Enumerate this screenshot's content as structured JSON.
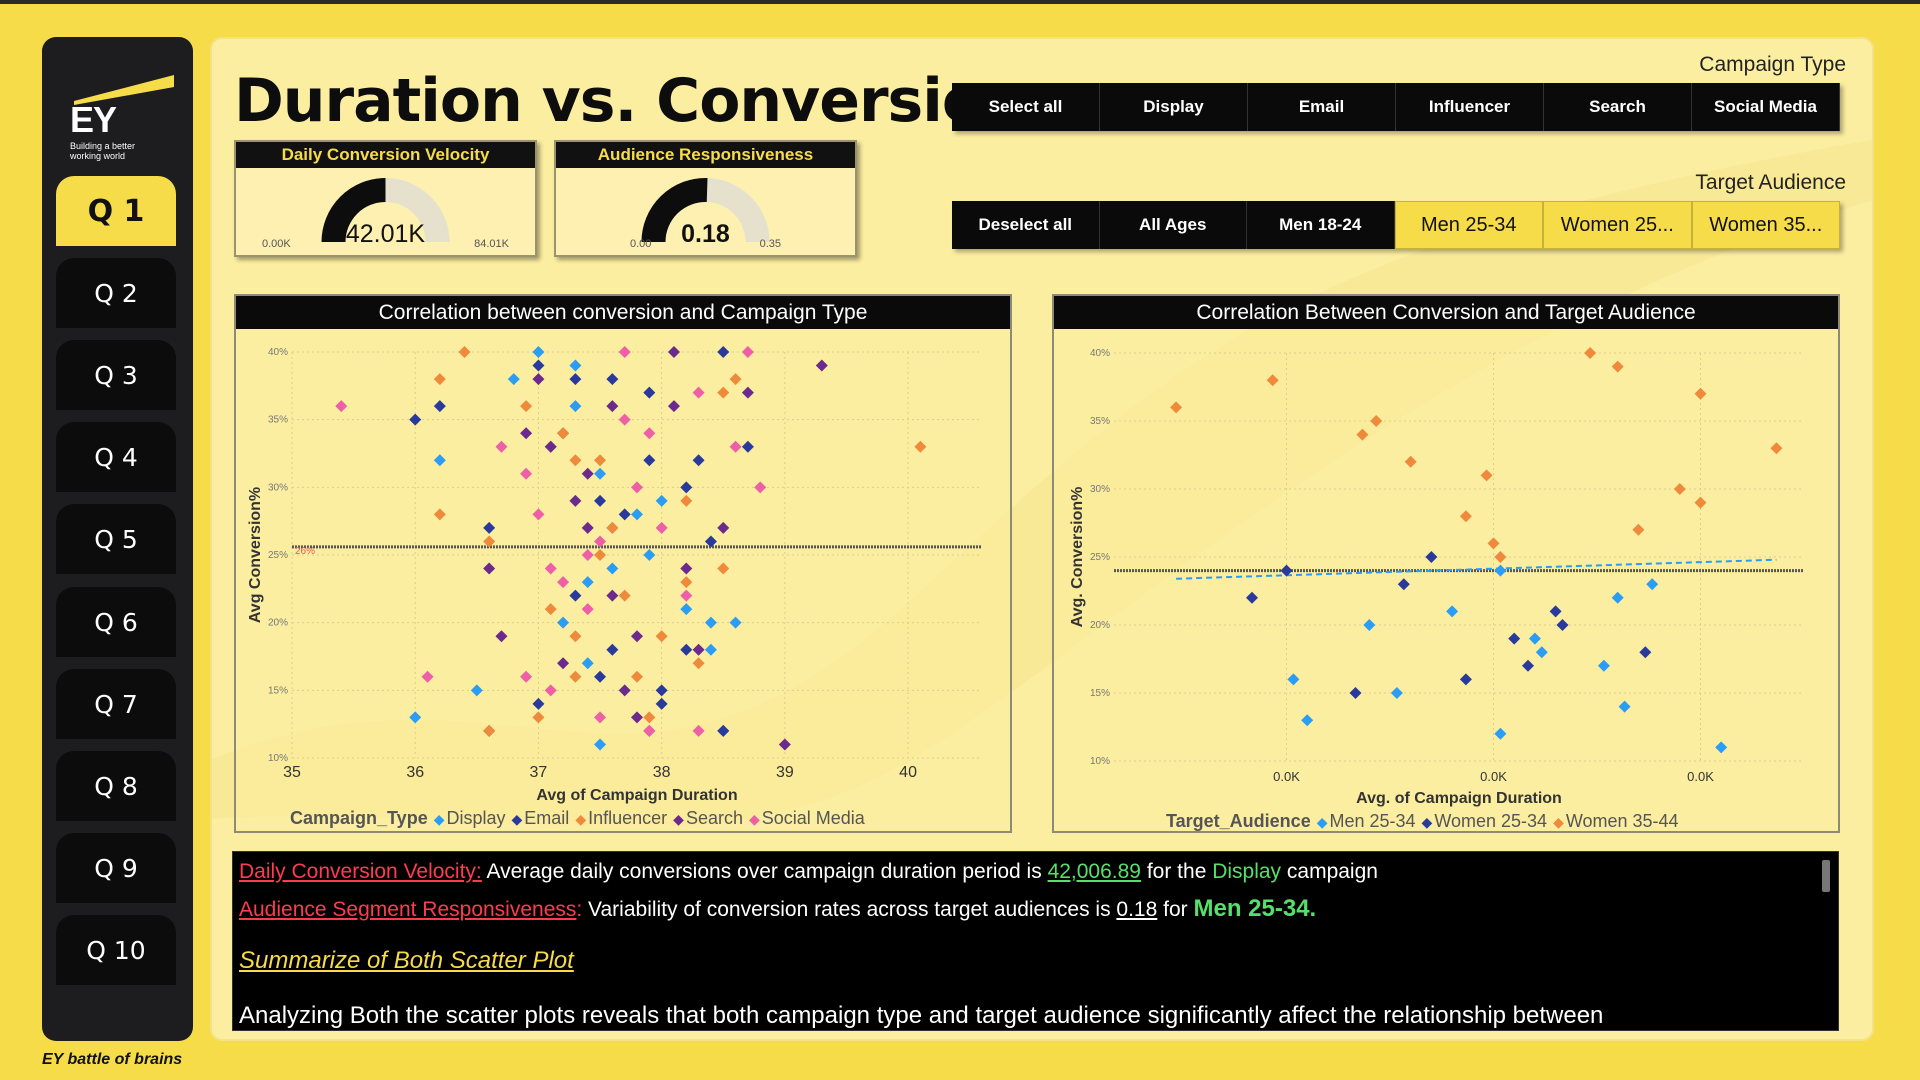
{
  "sidebar": {
    "brand": "EY",
    "tagline": "Building a better working world",
    "items": [
      "Q 1",
      "Q 2",
      "Q 3",
      "Q 4",
      "Q 5",
      "Q 6",
      "Q 7",
      "Q 8",
      "Q 9",
      "Q 10"
    ],
    "active": "Q 1",
    "footer": "EY battle of brains"
  },
  "header": {
    "title": "Duration vs. Conversion"
  },
  "kpis": [
    {
      "title": "Daily Conversion Velocity",
      "value": "42.01K",
      "min": "0.00K",
      "max": "84.01K",
      "fraction": 0.5
    },
    {
      "title": "Audience Responsiveness",
      "value": "0.18",
      "min": "0.00",
      "max": "0.35",
      "fraction": 0.51
    }
  ],
  "campaign_slicer": {
    "label": "Campaign Type",
    "buttons": [
      "Select all",
      "Display",
      "Email",
      "Influencer",
      "Search",
      "Social Media"
    ],
    "selected": []
  },
  "audience_slicer": {
    "label": "Target Audience",
    "buttons": [
      "Deselect all",
      "All Ages",
      "Men 18-24",
      "Men 25-34",
      "Women 25...",
      "Women 35..."
    ],
    "selected": [
      "Men 25-34",
      "Women 25...",
      "Women 35..."
    ]
  },
  "colors": {
    "display": "#2b9df4",
    "email": "#2a3a9c",
    "influencer": "#ef8a3c",
    "search": "#6b2a8c",
    "social": "#ee5fa8",
    "brand_yellow": "#f7dc4a"
  },
  "chart_data": [
    {
      "type": "scatter",
      "title": "Correlation between conversion and Campaign Type",
      "xlabel": "Avg of Campaign Duration",
      "ylabel": "Avg Conversion%",
      "xlim": [
        35,
        40.6
      ],
      "ylim": [
        10,
        40
      ],
      "x_ticks": [
        "35",
        "36",
        "37",
        "38",
        "39",
        "40"
      ],
      "y_ticks": [
        "10%",
        "15%",
        "20%",
        "25%",
        "30%",
        "35%",
        "40%"
      ],
      "reference_line": {
        "y": 25.6,
        "label": "26%"
      },
      "legend_title": "Campaign_Type",
      "legend": [
        "Display",
        "Email",
        "Influencer",
        "Search",
        "Social Media"
      ],
      "grid": true,
      "series": [
        {
          "name": "Display",
          "color": "#2b9df4",
          "points": [
            [
              36.2,
              32
            ],
            [
              36.0,
              13
            ],
            [
              36.5,
              15
            ],
            [
              37.0,
              40
            ],
            [
              37.3,
              39
            ],
            [
              37.5,
              31
            ],
            [
              37.8,
              28
            ],
            [
              38.0,
              29
            ],
            [
              37.4,
              23
            ],
            [
              37.2,
              20
            ],
            [
              37.6,
              24
            ],
            [
              38.2,
              21
            ],
            [
              38.4,
              18
            ],
            [
              37.5,
              11
            ],
            [
              38.5,
              12
            ],
            [
              37.1,
              33
            ],
            [
              37.6,
              27
            ],
            [
              38.4,
              20
            ],
            [
              36.8,
              38
            ],
            [
              37.3,
              36
            ],
            [
              37.4,
              17
            ],
            [
              38.6,
              20
            ],
            [
              37.9,
              25
            ]
          ]
        },
        {
          "name": "Email",
          "color": "#2a3a9c",
          "points": [
            [
              36.0,
              35
            ],
            [
              36.2,
              36
            ],
            [
              36.6,
              12
            ],
            [
              36.6,
              27
            ],
            [
              37.0,
              39
            ],
            [
              37.3,
              38
            ],
            [
              37.6,
              38
            ],
            [
              37.2,
              34
            ],
            [
              37.9,
              37
            ],
            [
              38.3,
              32
            ],
            [
              37.5,
              29
            ],
            [
              37.7,
              28
            ],
            [
              38.2,
              30
            ],
            [
              38.0,
              14
            ],
            [
              38.5,
              12
            ],
            [
              38.0,
              15
            ],
            [
              37.5,
              16
            ],
            [
              38.7,
              33
            ],
            [
              37.0,
              14
            ],
            [
              37.6,
              18
            ],
            [
              37.3,
              22
            ],
            [
              38.4,
              26
            ],
            [
              38.2,
              18
            ],
            [
              38.5,
              40
            ],
            [
              37.9,
              32
            ]
          ]
        },
        {
          "name": "Influencer",
          "color": "#ef8a3c",
          "points": [
            [
              36.2,
              38
            ],
            [
              36.4,
              40
            ],
            [
              36.2,
              28
            ],
            [
              36.6,
              12
            ],
            [
              36.9,
              36
            ],
            [
              37.0,
              13
            ],
            [
              37.2,
              34
            ],
            [
              37.3,
              32
            ],
            [
              37.5,
              32
            ],
            [
              37.1,
              21
            ],
            [
              37.3,
              19
            ],
            [
              37.5,
              25
            ],
            [
              37.6,
              27
            ],
            [
              37.8,
              16
            ],
            [
              37.7,
              22
            ],
            [
              38.0,
              19
            ],
            [
              38.3,
              17
            ],
            [
              38.5,
              37
            ],
            [
              38.5,
              24
            ],
            [
              38.6,
              38
            ],
            [
              38.2,
              23
            ],
            [
              37.9,
              13
            ],
            [
              40.1,
              33
            ],
            [
              36.6,
              26
            ],
            [
              37.3,
              16
            ],
            [
              38.2,
              29
            ]
          ]
        },
        {
          "name": "Search",
          "color": "#6b2a8c",
          "points": [
            [
              36.6,
              24
            ],
            [
              36.7,
              19
            ],
            [
              37.0,
              38
            ],
            [
              37.1,
              33
            ],
            [
              37.3,
              29
            ],
            [
              37.2,
              17
            ],
            [
              37.4,
              31
            ],
            [
              37.6,
              36
            ],
            [
              37.6,
              22
            ],
            [
              37.7,
              15
            ],
            [
              37.8,
              19
            ],
            [
              37.8,
              13
            ],
            [
              37.9,
              12
            ],
            [
              38.2,
              24
            ],
            [
              38.3,
              18
            ],
            [
              38.5,
              27
            ],
            [
              38.7,
              37
            ],
            [
              39.0,
              11
            ],
            [
              39.3,
              39
            ],
            [
              38.1,
              36
            ],
            [
              37.4,
              27
            ],
            [
              36.9,
              34
            ],
            [
              38.1,
              40
            ]
          ]
        },
        {
          "name": "Social Media",
          "color": "#ee5fa8",
          "points": [
            [
              35.4,
              36
            ],
            [
              36.1,
              16
            ],
            [
              36.9,
              16
            ],
            [
              36.9,
              31
            ],
            [
              37.0,
              28
            ],
            [
              37.1,
              24
            ],
            [
              37.2,
              23
            ],
            [
              37.4,
              25
            ],
            [
              37.5,
              26
            ],
            [
              37.7,
              35
            ],
            [
              37.8,
              30
            ],
            [
              37.9,
              34
            ],
            [
              38.0,
              27
            ],
            [
              38.3,
              37
            ],
            [
              38.8,
              30
            ],
            [
              38.3,
              12
            ],
            [
              37.9,
              12
            ],
            [
              38.7,
              40
            ],
            [
              37.7,
              40
            ],
            [
              37.4,
              21
            ],
            [
              36.7,
              33
            ],
            [
              37.1,
              15
            ],
            [
              38.6,
              33
            ],
            [
              38.2,
              22
            ],
            [
              37.5,
              13
            ]
          ]
        }
      ]
    },
    {
      "type": "scatter",
      "title": "Correlation Between Conversion and Target Audience",
      "xlabel": "Avg. of Campaign Duration",
      "ylabel": "Avg. Conversion%",
      "xlim": [
        0,
        1
      ],
      "ylim": [
        10,
        40
      ],
      "x_ticks": [
        "0.0K",
        "0.0K",
        "0.0K"
      ],
      "y_ticks": [
        "10%",
        "15%",
        "20%",
        "25%",
        "30%",
        "35%",
        "40%"
      ],
      "reference_line": {
        "y": 24
      },
      "trend_line": {
        "from": [
          0.09,
          23.4
        ],
        "to": [
          0.96,
          24.8
        ]
      },
      "legend_title": "Target_Audience",
      "legend": [
        "Men 25-34",
        "Women 25-34",
        "Women 35-44"
      ],
      "grid": true,
      "series": [
        {
          "name": "Men 25-34",
          "color": "#2b9df4",
          "points": [
            [
              0.26,
              16
            ],
            [
              0.28,
              13
            ],
            [
              0.37,
              20
            ],
            [
              0.41,
              15
            ],
            [
              0.49,
              21
            ],
            [
              0.56,
              24
            ],
            [
              0.56,
              12
            ],
            [
              0.61,
              19
            ],
            [
              0.62,
              18
            ],
            [
              0.71,
              17
            ],
            [
              0.73,
              22
            ],
            [
              0.74,
              14
            ],
            [
              0.78,
              23
            ],
            [
              0.88,
              11
            ]
          ]
        },
        {
          "name": "Women 25-34",
          "color": "#2a3a9c",
          "points": [
            [
              0.2,
              22
            ],
            [
              0.25,
              24
            ],
            [
              0.35,
              15
            ],
            [
              0.42,
              23
            ],
            [
              0.46,
              25
            ],
            [
              0.51,
              16
            ],
            [
              0.58,
              19
            ],
            [
              0.6,
              17
            ],
            [
              0.64,
              21
            ],
            [
              0.65,
              20
            ],
            [
              0.77,
              18
            ]
          ]
        },
        {
          "name": "Women 35-44",
          "color": "#ef8a3c",
          "points": [
            [
              0.09,
              36
            ],
            [
              0.23,
              38
            ],
            [
              0.36,
              34
            ],
            [
              0.38,
              35
            ],
            [
              0.43,
              32
            ],
            [
              0.51,
              28
            ],
            [
              0.54,
              31
            ],
            [
              0.55,
              26
            ],
            [
              0.56,
              25
            ],
            [
              0.69,
              40
            ],
            [
              0.73,
              39
            ],
            [
              0.76,
              27
            ],
            [
              0.82,
              30
            ],
            [
              0.85,
              29
            ],
            [
              0.85,
              37
            ],
            [
              0.96,
              33
            ]
          ]
        }
      ]
    }
  ],
  "summary": {
    "l1_label": "Daily Conversion Velocity:",
    "l1_text": " Average daily conversions over campaign duration period is ",
    "l1_value": "42,006.89",
    "l1_mid": " for the ",
    "l1_campaign": "Display",
    "l1_end": " campaign",
    "l2_label": "Audience Segment Responsiveness",
    "l2_colon": ":",
    "l2_text": " Variability of conversion rates across target audiences is ",
    "l2_value": "0.18",
    "l2_mid": " for ",
    "l2_aud": "Men 25-34.",
    "heading": "Summarize of Both Scatter Plot",
    "body": "Analyzing Both the scatter plots reveals that both campaign type and target audience significantly affect the relationship between"
  }
}
